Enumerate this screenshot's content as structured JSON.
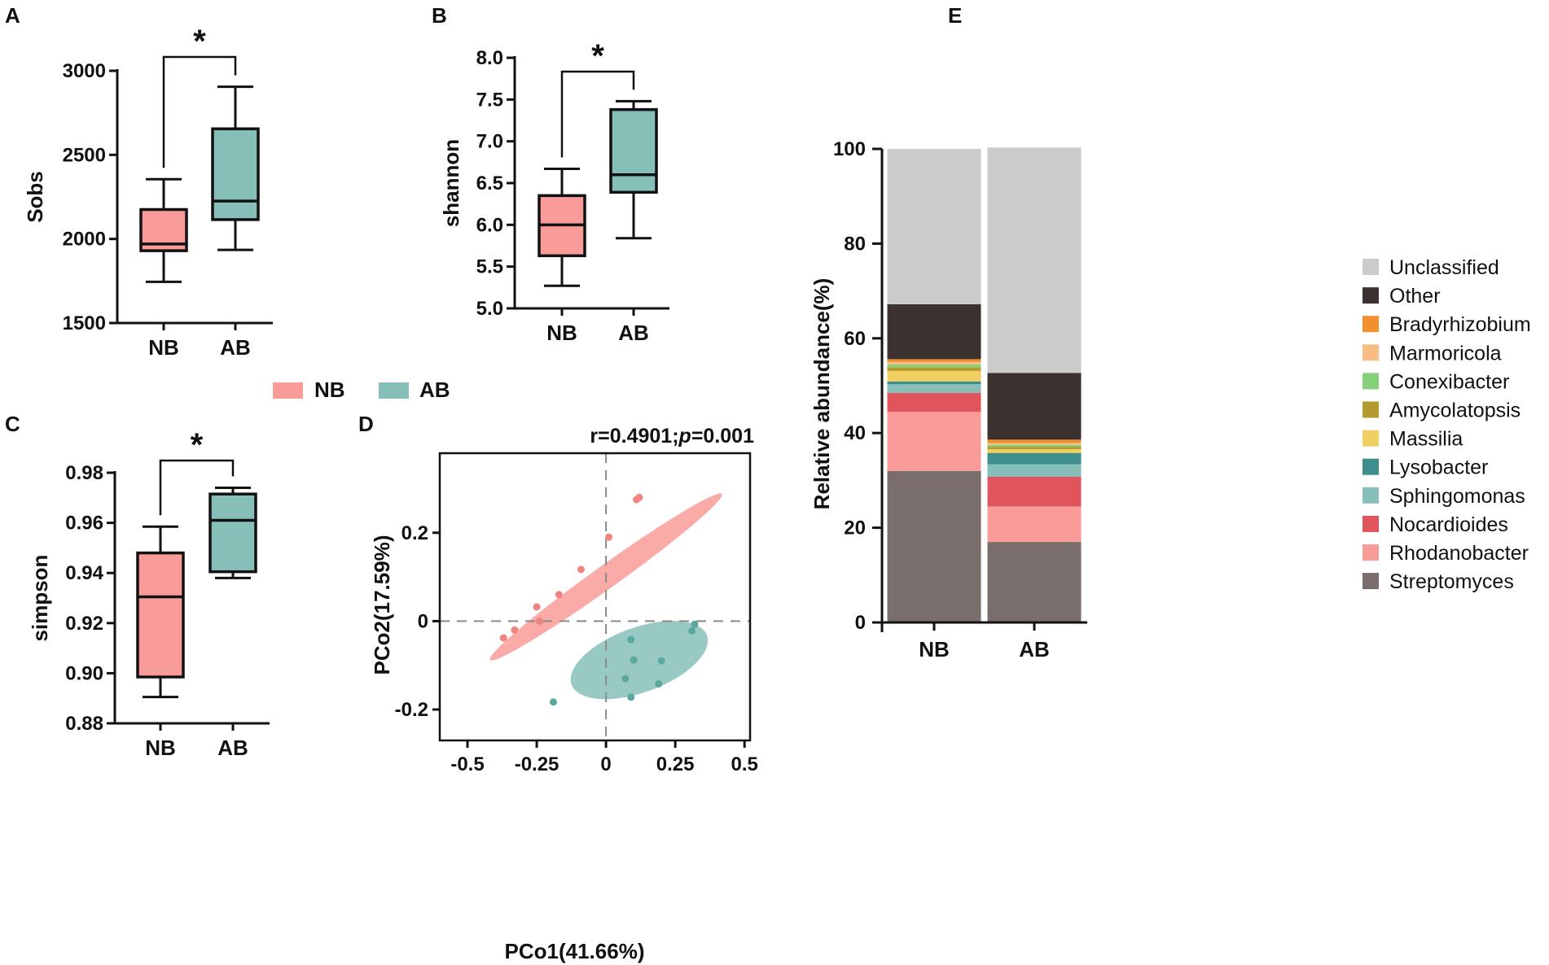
{
  "colors": {
    "nb": "#F99B98",
    "ab": "#86BFB7",
    "nb_dot": "#F08580",
    "ab_dot": "#5BA89E",
    "dash": "#8a8a8a"
  },
  "legend": {
    "nb": "NB",
    "ab": "AB"
  },
  "chart_data": [
    {
      "id": "A",
      "panel_label": "A",
      "type": "boxplot",
      "ylabel": "Sobs",
      "categories": [
        "NB",
        "AB"
      ],
      "ylim": [
        1500,
        3000
      ],
      "yticks": [
        1500,
        2000,
        2500,
        3000
      ],
      "ytick_labels": [
        "1500",
        "2000",
        "2500",
        "3000"
      ],
      "boxes": [
        {
          "group": "NB",
          "min": 1745,
          "q1": 1930,
          "median": 1970,
          "q3": 2175,
          "max": 2355
        },
        {
          "group": "AB",
          "min": 1935,
          "q1": 2115,
          "median": 2225,
          "q3": 2655,
          "max": 2905
        }
      ],
      "significance": "*"
    },
    {
      "id": "B",
      "panel_label": "B",
      "type": "boxplot",
      "ylabel": "shannon",
      "categories": [
        "NB",
        "AB"
      ],
      "ylim": [
        5.0,
        8.0
      ],
      "yticks": [
        5.0,
        5.5,
        6.0,
        6.5,
        7.0,
        7.5,
        8.0
      ],
      "ytick_labels": [
        "5.0",
        "5.5",
        "6.0",
        "6.5",
        "7.0",
        "7.5",
        "8.0"
      ],
      "boxes": [
        {
          "group": "NB",
          "min": 5.27,
          "q1": 5.63,
          "median": 6.0,
          "q3": 6.35,
          "max": 6.67
        },
        {
          "group": "AB",
          "min": 5.84,
          "q1": 6.39,
          "median": 6.6,
          "q3": 7.38,
          "max": 7.48
        }
      ],
      "significance": "*"
    },
    {
      "id": "C",
      "panel_label": "C",
      "type": "boxplot",
      "ylabel": "simpson",
      "categories": [
        "NB",
        "AB"
      ],
      "ylim": [
        0.88,
        0.98
      ],
      "yticks": [
        0.88,
        0.9,
        0.92,
        0.94,
        0.96,
        0.98
      ],
      "ytick_labels": [
        "0.88",
        "0.90",
        "0.92",
        "0.94",
        "0.96",
        "0.98"
      ],
      "boxes": [
        {
          "group": "NB",
          "min": 0.8905,
          "q1": 0.8985,
          "median": 0.9305,
          "q3": 0.948,
          "max": 0.9585
        },
        {
          "group": "AB",
          "min": 0.938,
          "q1": 0.9405,
          "median": 0.961,
          "q3": 0.9715,
          "max": 0.974
        }
      ],
      "significance": "*"
    },
    {
      "id": "D",
      "panel_label": "D",
      "type": "scatter",
      "xlabel": "PCo1(41.66%)",
      "ylabel": "PCo2(17.59%)",
      "annotation_left": "r=0.4901;",
      "annotation_p": "p",
      "annotation_right": "=0.001",
      "xlim": [
        -0.6,
        0.52
      ],
      "ylim": [
        -0.27,
        0.38
      ],
      "xticks": [
        -0.5,
        -0.25,
        0,
        0.25,
        0.5
      ],
      "xtick_labels": [
        "-0.5",
        "-0.25",
        "0",
        "0.25",
        "0.5"
      ],
      "yticks": [
        -0.2,
        0,
        0.2
      ],
      "ytick_labels": [
        "-0.2",
        "0",
        "0.2"
      ],
      "series": [
        {
          "name": "NB",
          "points": [
            [
              -0.37,
              -0.038
            ],
            [
              -0.33,
              -0.02
            ],
            [
              -0.25,
              0.032
            ],
            [
              -0.24,
              0.0
            ],
            [
              -0.17,
              0.06
            ],
            [
              -0.09,
              0.117
            ],
            [
              0.01,
              0.19
            ],
            [
              0.11,
              0.275
            ],
            [
              0.12,
              0.28
            ]
          ],
          "ellipse": {
            "cx": 0.0,
            "cy": 0.1,
            "rx": 0.515,
            "ry": 0.042,
            "angle_deg": 35.6
          }
        },
        {
          "name": "AB",
          "points": [
            [
              -0.19,
              -0.183
            ],
            [
              0.07,
              -0.13
            ],
            [
              0.09,
              -0.042
            ],
            [
              0.09,
              -0.172
            ],
            [
              0.1,
              -0.088
            ],
            [
              0.19,
              -0.142
            ],
            [
              0.2,
              -0.09
            ],
            [
              0.31,
              -0.022
            ],
            [
              0.32,
              -0.007
            ]
          ],
          "ellipse": {
            "cx": 0.12,
            "cy": -0.088,
            "rx": 0.26,
            "ry": 0.117,
            "angle_deg": 20
          }
        }
      ]
    },
    {
      "id": "E",
      "panel_label": "E",
      "type": "stacked-bar",
      "ylabel": "Relative abundance(%)",
      "categories": [
        "NB",
        "AB"
      ],
      "ylim": [
        0,
        100
      ],
      "yticks": [
        0,
        20,
        40,
        60,
        80,
        100
      ],
      "ytick_labels": [
        "0",
        "20",
        "40",
        "60",
        "80",
        "100"
      ],
      "series": [
        {
          "name": "Streptomyces",
          "color": "#7A6E6D",
          "values": [
            32.0,
            17.0
          ]
        },
        {
          "name": "Rhodanobacter",
          "color": "#F99B98",
          "values": [
            12.5,
            7.5
          ]
        },
        {
          "name": "Nocardioides",
          "color": "#E0555C",
          "values": [
            4.0,
            6.3
          ]
        },
        {
          "name": "Sphingomonas",
          "color": "#86BFB7",
          "values": [
            1.8,
            2.6
          ]
        },
        {
          "name": "Lysobacter",
          "color": "#3E8E8B",
          "values": [
            0.6,
            2.4
          ]
        },
        {
          "name": "Massilia",
          "color": "#F2CF63",
          "values": [
            2.2,
            0.8
          ]
        },
        {
          "name": "Amycolatopsis",
          "color": "#B39B2E",
          "values": [
            0.8,
            0.5
          ]
        },
        {
          "name": "Conexibacter",
          "color": "#86D07C",
          "values": [
            0.6,
            0.4
          ]
        },
        {
          "name": "Marmoricola",
          "color": "#F8BD85",
          "values": [
            0.5,
            0.4
          ]
        },
        {
          "name": "Bradyrhizobium",
          "color": "#F0902E",
          "values": [
            0.6,
            0.7
          ]
        },
        {
          "name": "Other",
          "color": "#3B3230",
          "values": [
            11.6,
            14.1
          ]
        },
        {
          "name": "Unclassified",
          "color": "#CBCBCB",
          "values": [
            32.8,
            47.6
          ]
        }
      ]
    }
  ]
}
